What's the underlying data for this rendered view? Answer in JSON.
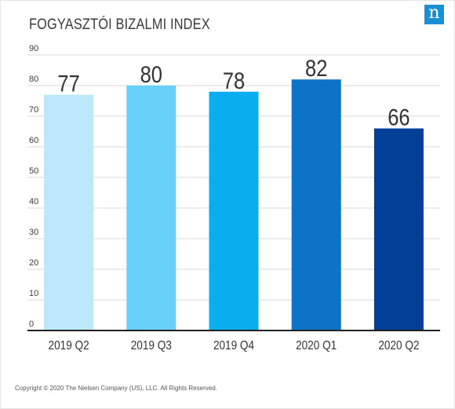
{
  "header": {
    "logo_text": "n",
    "logo_color": "#1a8fd6"
  },
  "footer": {
    "copyright": "Copyright © 2020 The Nielsen Company (US), LLC. All Rights Reserved."
  },
  "chart_data": {
    "type": "bar",
    "title": "FOGYASZTÓI BIZALMI INDEX",
    "xlabel": "",
    "ylabel": "",
    "categories": [
      "2019 Q2",
      "2019 Q3",
      "2019 Q4",
      "2020 Q1",
      "2020 Q2"
    ],
    "values": [
      77,
      80,
      78,
      82,
      66
    ],
    "data_labels": [
      "77",
      "80",
      "78",
      "82",
      "66"
    ],
    "colors": [
      "#bde8f9",
      "#66d0f8",
      "#0aaeee",
      "#0b74c7",
      "#023f96"
    ],
    "ylim": [
      0,
      90
    ],
    "yticks": [
      0,
      10,
      20,
      30,
      40,
      50,
      60,
      70,
      80,
      90
    ],
    "grid": true,
    "legend": "none"
  }
}
